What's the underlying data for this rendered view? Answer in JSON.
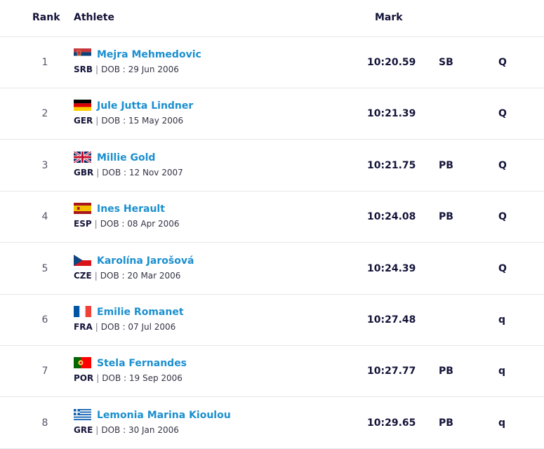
{
  "header": {
    "rank": "Rank",
    "athlete": "Athlete",
    "mark": "Mark"
  },
  "dob_prefix": "DOB : ",
  "separator": "|",
  "rows": [
    {
      "rank": "1",
      "name": "Mejra Mehmedovic",
      "country": "SRB",
      "flag": "serbia-flag-icon",
      "dob": "29 Jun 2006",
      "mark": "10:20.59",
      "record": "SB",
      "qualifier": "Q"
    },
    {
      "rank": "2",
      "name": "Jule Jutta Lindner",
      "country": "GER",
      "flag": "germany-flag-icon",
      "dob": "15 May 2006",
      "mark": "10:21.39",
      "record": "",
      "qualifier": "Q"
    },
    {
      "rank": "3",
      "name": "Millie Gold",
      "country": "GBR",
      "flag": "great-britain-flag-icon",
      "dob": "12 Nov 2007",
      "mark": "10:21.75",
      "record": "PB",
      "qualifier": "Q"
    },
    {
      "rank": "4",
      "name": "Ines Herault",
      "country": "ESP",
      "flag": "spain-flag-icon",
      "dob": "08 Apr 2006",
      "mark": "10:24.08",
      "record": "PB",
      "qualifier": "Q"
    },
    {
      "rank": "5",
      "name": "Karolína Jarošová",
      "country": "CZE",
      "flag": "czechia-flag-icon",
      "dob": "20 Mar 2006",
      "mark": "10:24.39",
      "record": "",
      "qualifier": "Q"
    },
    {
      "rank": "6",
      "name": "Emilie Romanet",
      "country": "FRA",
      "flag": "france-flag-icon",
      "dob": "07 Jul 2006",
      "mark": "10:27.48",
      "record": "",
      "qualifier": "q"
    },
    {
      "rank": "7",
      "name": "Stela Fernandes",
      "country": "POR",
      "flag": "portugal-flag-icon",
      "dob": "19 Sep 2006",
      "mark": "10:27.77",
      "record": "PB",
      "qualifier": "q"
    },
    {
      "rank": "8",
      "name": "Lemonia Marina Kioulou",
      "country": "GRE",
      "flag": "greece-flag-icon",
      "dob": "30 Jan 2006",
      "mark": "10:29.65",
      "record": "PB",
      "qualifier": "q"
    }
  ]
}
